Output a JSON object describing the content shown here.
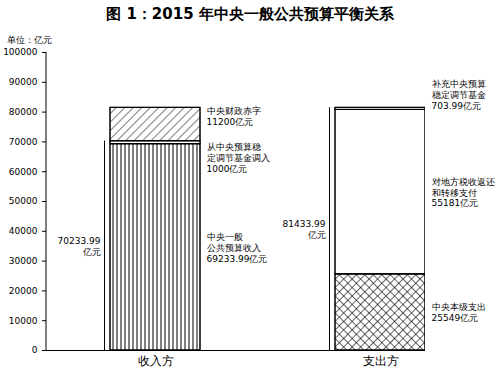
{
  "chart_data": {
    "type": "bar",
    "title": "图 1：2015 年中央一般公共预算平衡关系",
    "y_label": "单位：亿元",
    "stacked": true,
    "data_labels": true,
    "categories": [
      "收入方",
      "支出方"
    ],
    "ylim": [
      0,
      100000
    ],
    "yticks": [
      0,
      10000,
      20000,
      30000,
      40000,
      50000,
      60000,
      70000,
      80000,
      90000,
      100000
    ],
    "series": [
      {
        "name": "中央一般\n公共预算收入",
        "color": "#ffffff",
        "values": [
          69233.99,
          null
        ],
        "value_labels": [
          "69233.99亿元",
          null
        ]
      },
      {
        "name": "从中央预算稳\n定调节基金调入",
        "color": "#ffffff",
        "values": [
          1000,
          null
        ],
        "value_labels": [
          "1000亿元",
          null
        ]
      },
      {
        "name": "中央财政赤字",
        "color": "#ffffff",
        "values": [
          11200,
          null
        ],
        "value_labels": [
          "11200亿元",
          null
        ]
      },
      {
        "name": "中央本级支出",
        "color": "#ffffff",
        "values": [
          null,
          25549
        ],
        "value_labels": [
          null,
          "25549亿元"
        ]
      },
      {
        "name": "对地方税收返还\n和转移支付",
        "color": "#ffffff",
        "values": [
          null,
          55181
        ],
        "value_labels": [
          null,
          "55181亿元"
        ]
      },
      {
        "name": "补充中央预算\n稳定调节基金",
        "color": "#ffffff",
        "values": [
          null,
          703.99
        ],
        "value_labels": [
          null,
          "703.99亿元"
        ]
      }
    ],
    "brackets": [
      {
        "category": "收入方",
        "value": 70233.99,
        "label": "70233.99\n亿元"
      },
      {
        "category": "支出方",
        "value": 81433.99,
        "label": "81433.99\n亿元"
      }
    ]
  }
}
